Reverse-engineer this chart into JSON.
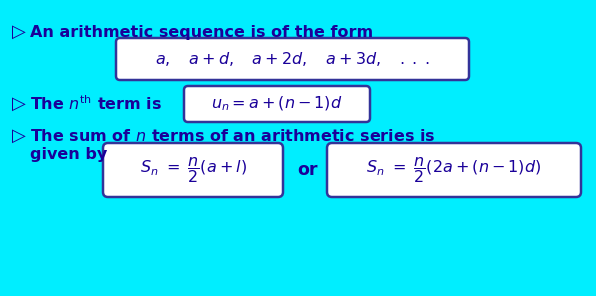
{
  "bg_color": "#00EEFF",
  "text_color": "#1A0099",
  "box_facecolor": "white",
  "box_edgecolor": "#333399",
  "figsize": [
    5.96,
    2.96
  ],
  "dpi": 100,
  "bullet": "▷",
  "line1_label": "An arithmetic sequence is of the form",
  "line1_formula": "$a, \\quad a+d, \\quad a+2d, \\quad a+3d, \\quad .\\;.\\;.$",
  "line2_label_pre": "The ",
  "line2_label_mid": "$n^{\\rm th}$",
  "line2_label_post": " term is",
  "line2_formula": "$u_n = a+(n-1)d$",
  "line3_label1": "The sum of $n$ terms of an arithmetic series is",
  "line3_label2": "given by",
  "line3_formula1": "$S_n \\ =\\ \\dfrac{n}{2}(a+l)$",
  "line3_or": "or",
  "line3_formula2": "$S_n \\ =\\ \\dfrac{n}{2}(2a+(n-1)d)$",
  "font_size_text": 11.5,
  "font_size_formula": 11.5,
  "font_size_bullet": 11
}
